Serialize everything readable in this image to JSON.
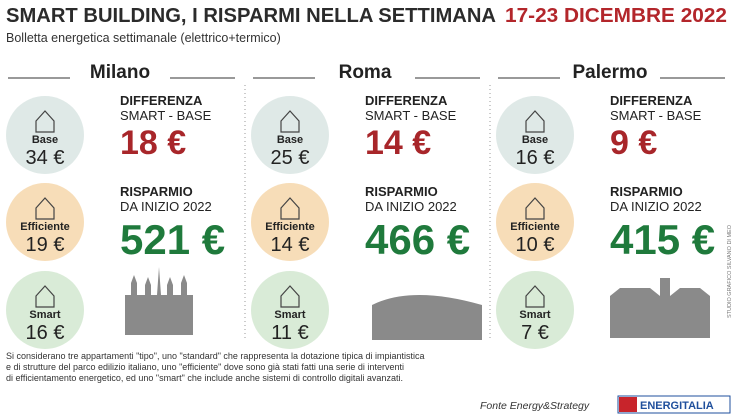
{
  "header": {
    "title": "SMART BUILDING, I RISPARMI NELLA SETTIMANA",
    "date": "17-23 DICEMBRE 2022",
    "subtitle": "Bolletta energetica settimanale (elettrico+termico)"
  },
  "labels": {
    "base": "Base",
    "efficiente": "Efficiente",
    "smart": "Smart",
    "diff_1": "DIFFERENZA",
    "diff_2": "SMART - BASE",
    "sav_1": "RISPARMIO",
    "sav_2": "DA INIZIO 2022"
  },
  "cities": [
    {
      "name": "Milano",
      "base": "34 €",
      "efficiente": "19 €",
      "smart": "16 €",
      "difference": "18 €",
      "savings": "521 €"
    },
    {
      "name": "Roma",
      "base": "25 €",
      "efficiente": "14 €",
      "smart": "11 €",
      "difference": "14 €",
      "savings": "466 €"
    },
    {
      "name": "Palermo",
      "base": "16 €",
      "efficiente": "10 €",
      "smart": "7 €",
      "difference": "9 €",
      "savings": "415 €"
    }
  ],
  "footer": {
    "notes": [
      "Si considerano tre appartamenti \"tipo\", uno \"standard\" che rappresenta la dotazione tipica di impiantistica",
      "e di strutture del parco edilizio italiano, uno \"efficiente\" dove sono già stati fatti una serie di interventi",
      "di efficientamento energetico, ed uno \"smart\" che include anche sistemi di controllo digitali avanzati."
    ],
    "source": "Fonte Energy&Strategy",
    "logo": "ENERGITALIA",
    "credit": "STUDIO GRAFICO SILVANO DI MEO"
  }
}
